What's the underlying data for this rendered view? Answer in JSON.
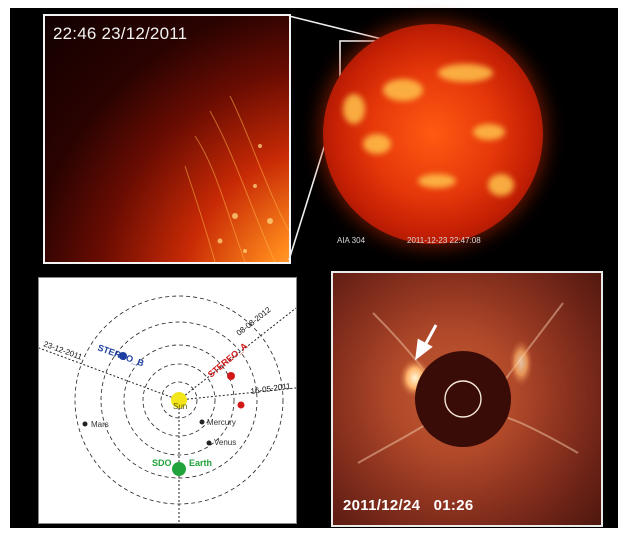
{
  "inset": {
    "timestamp": "22:46 23/12/2011"
  },
  "sun_image": {
    "instrument_label": "AIA 304",
    "time_label": "2011-12-23 22:47:08"
  },
  "orbit_diagram": {
    "sun_label": "Sun",
    "planets": {
      "mercury": "Mercury",
      "venus": "Venus",
      "earth": "Earth",
      "mars": "Mars"
    },
    "spacecraft": {
      "stereo_a": "STEREO_A",
      "stereo_b": "STEREO_B",
      "sdo": "SDO"
    },
    "dates": {
      "b_line": "23-12-2011",
      "a_line": "08-08-2012",
      "red_line": "16-05-2011"
    },
    "colors": {
      "stereo_a": "#d11919",
      "stereo_b": "#1d3fa0",
      "sdo": "#1fa33a",
      "sun": "#f3e61a"
    }
  },
  "coronagraph": {
    "timestamp": "2011/12/24   01:26"
  }
}
